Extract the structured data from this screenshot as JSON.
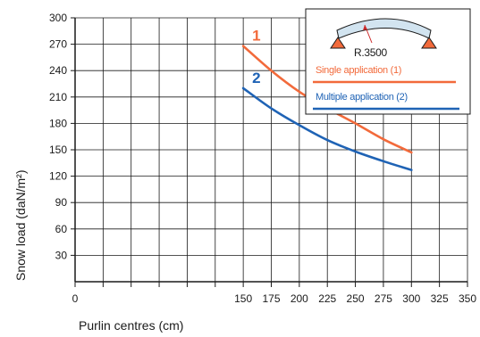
{
  "chart_data": {
    "type": "line",
    "xlabel": "Purlin centres (cm)",
    "ylabel": "Snow load  (daN/m²)",
    "xlim": [
      0,
      350
    ],
    "ylim": [
      0,
      300
    ],
    "x_ticks": [
      0,
      25,
      50,
      75,
      100,
      125,
      150,
      175,
      200,
      225,
      250,
      275,
      300,
      325,
      350
    ],
    "x_tick_labels": [
      "0",
      "150",
      "175",
      "200",
      "225",
      "250",
      "275",
      "300",
      "325",
      "350"
    ],
    "x_tick_label_positions": [
      0,
      150,
      175,
      200,
      225,
      250,
      275,
      300,
      325,
      350
    ],
    "y_ticks": [
      30,
      60,
      90,
      120,
      150,
      180,
      210,
      240,
      270,
      300
    ],
    "grid": true,
    "series": [
      {
        "name": "Single application (1)",
        "label": "1",
        "color": "#f26a3b",
        "x": [
          150,
          175,
          200,
          225,
          250,
          275,
          300
        ],
        "y": [
          268,
          240,
          216,
          197,
          180,
          162,
          147
        ]
      },
      {
        "name": "Multiple application (2)",
        "label": "2",
        "color": "#1f63b5",
        "x": [
          150,
          175,
          200,
          225,
          250,
          275,
          300
        ],
        "y": [
          220,
          197,
          178,
          161,
          148,
          137,
          127
        ]
      }
    ],
    "legend": {
      "placement": "top-right",
      "radius_label": "R.3500"
    }
  },
  "colors": {
    "axis": "#1a1a1a",
    "grid": "#1a1a1a",
    "arch_fill": "#d2e4f0",
    "support": "#f26a3b"
  }
}
